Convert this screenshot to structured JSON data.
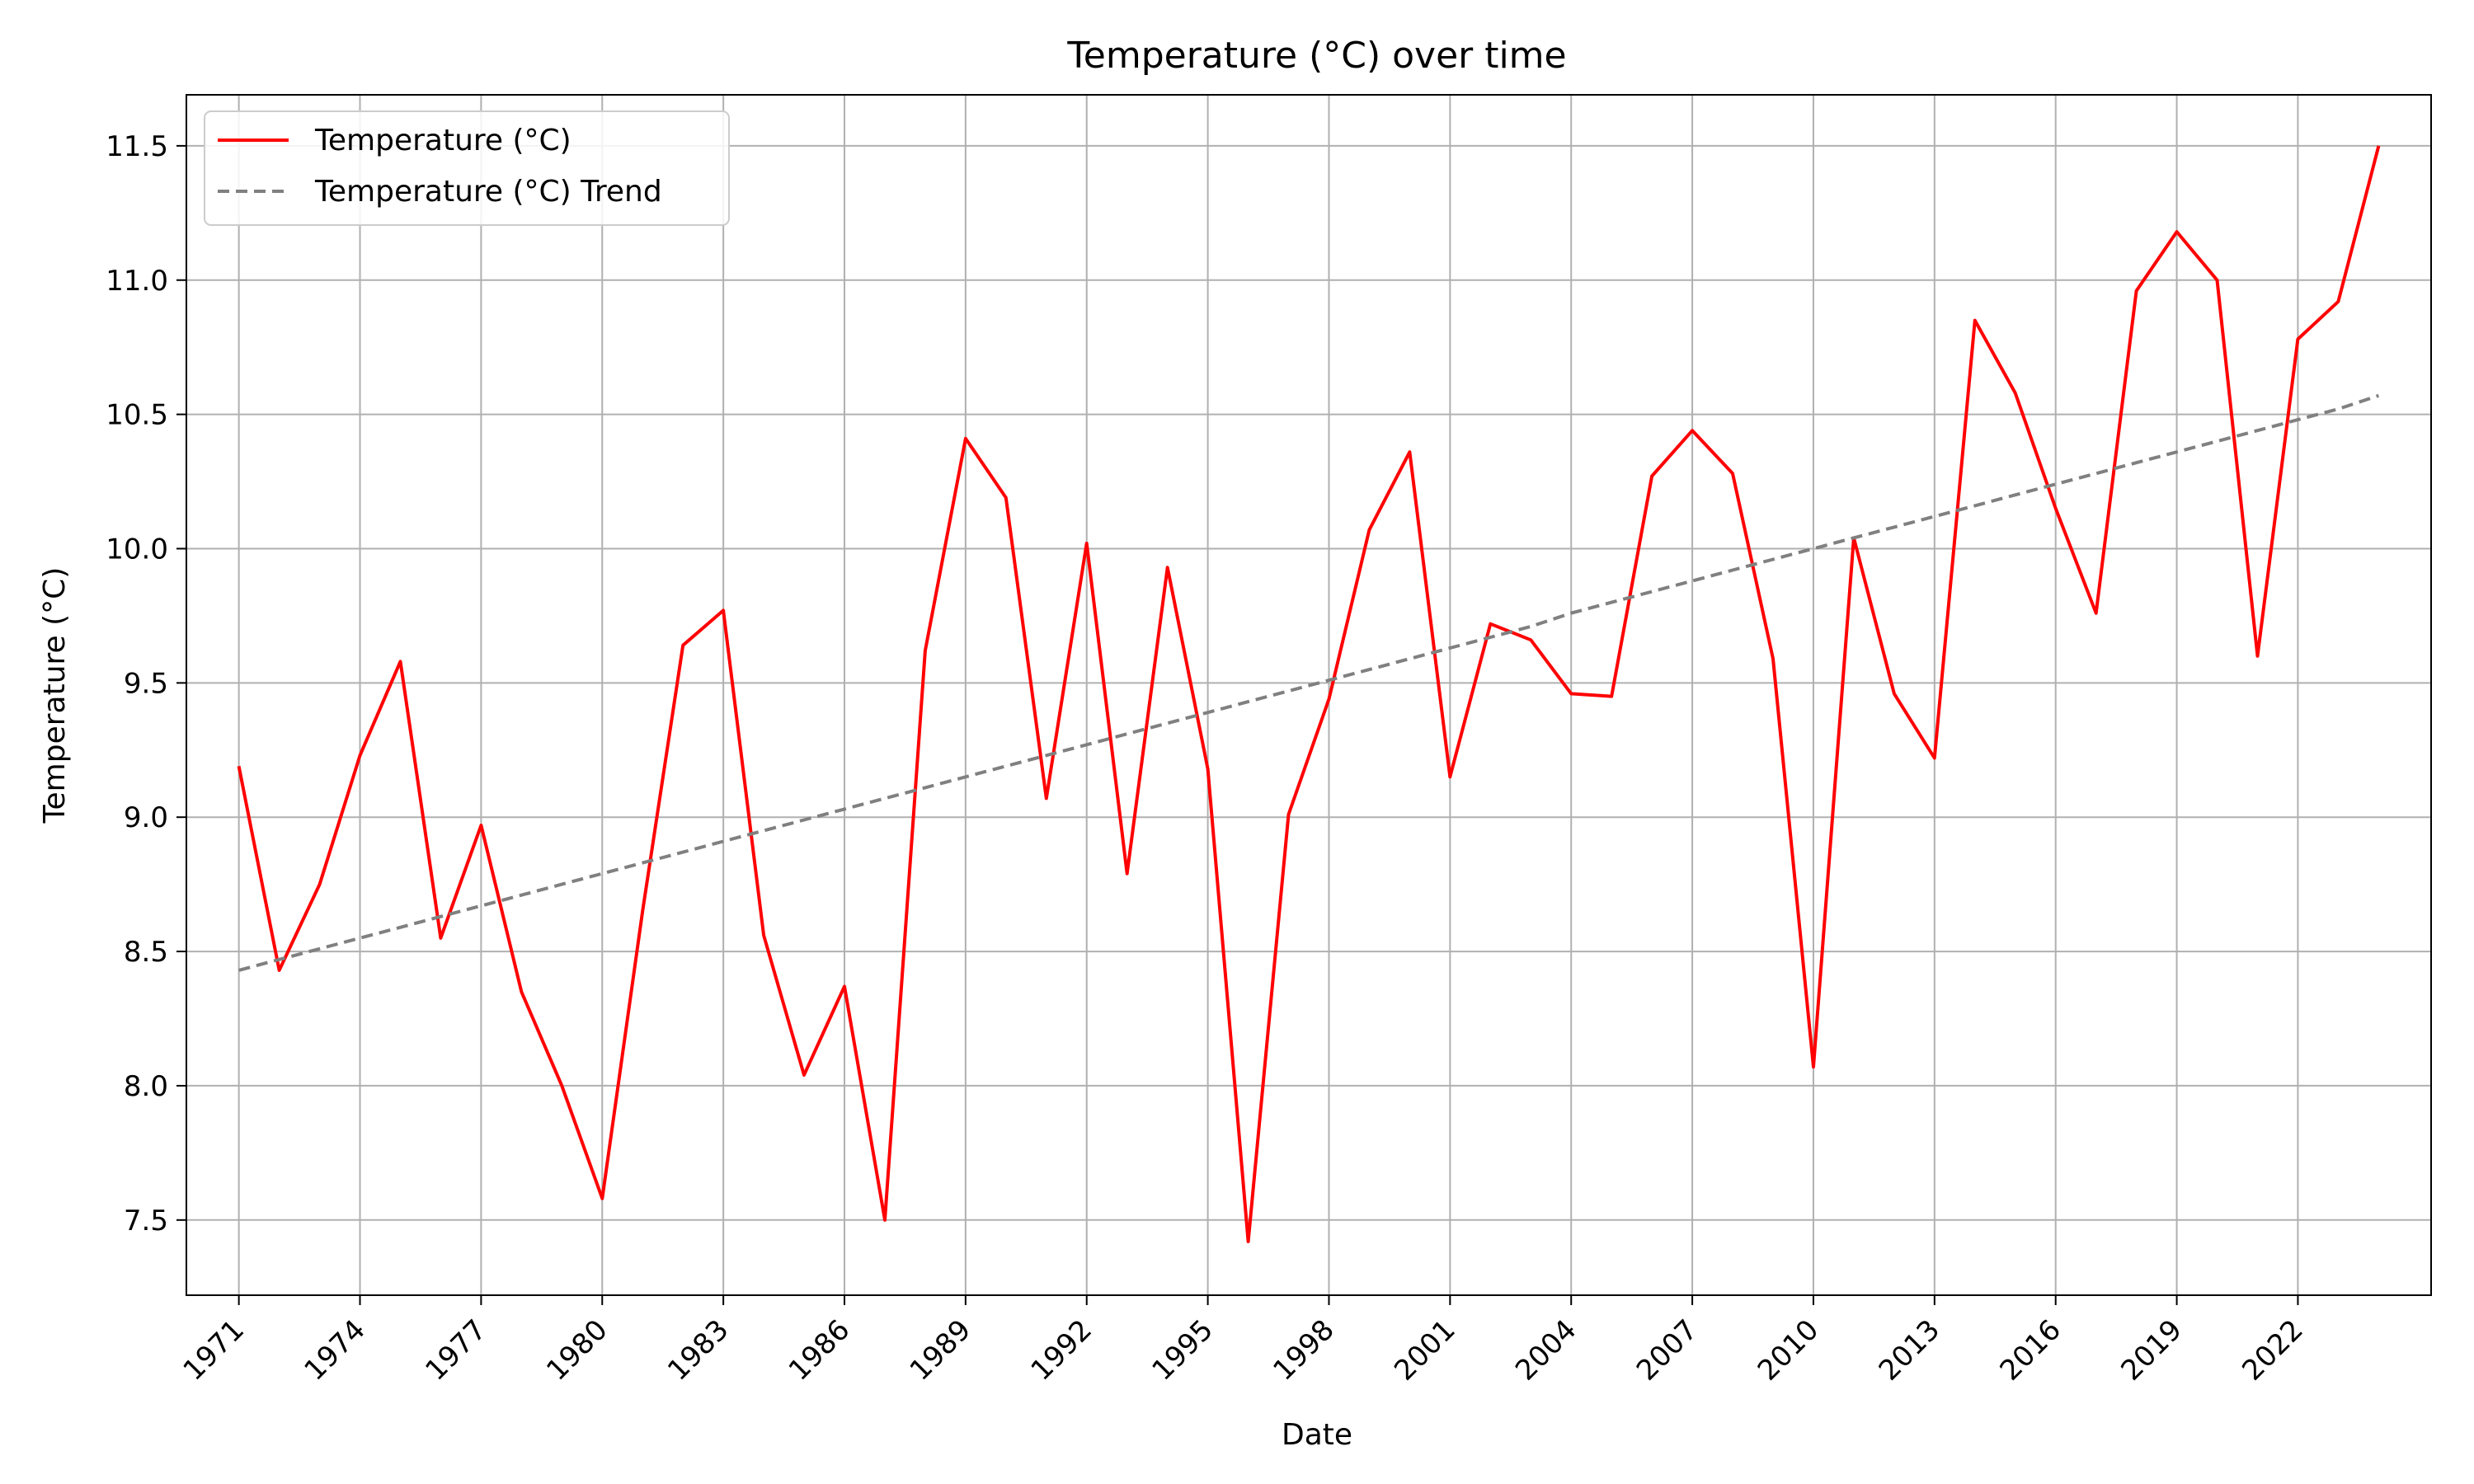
{
  "chart_data": {
    "type": "line",
    "title": "Temperature (°C) over time",
    "xlabel": "Date",
    "ylabel": "Temperature (°C)",
    "x": [
      1971,
      1972,
      1973,
      1974,
      1975,
      1976,
      1977,
      1978,
      1979,
      1980,
      1981,
      1982,
      1983,
      1984,
      1985,
      1986,
      1987,
      1988,
      1989,
      1990,
      1991,
      1992,
      1993,
      1994,
      1995,
      1996,
      1997,
      1998,
      1999,
      2000,
      2001,
      2002,
      2003,
      2004,
      2005,
      2006,
      2007,
      2008,
      2009,
      2010,
      2011,
      2012,
      2013,
      2014,
      2015,
      2016,
      2017,
      2018,
      2019,
      2020,
      2021,
      2022,
      2023,
      2024
    ],
    "x_ticks": [
      1971,
      1974,
      1977,
      1980,
      1983,
      1986,
      1989,
      1992,
      1995,
      1998,
      2001,
      2004,
      2007,
      2010,
      2013,
      2016,
      2019,
      2022
    ],
    "xlim": [
      1969.7,
      2025.3
    ],
    "ylim": [
      7.22,
      11.69
    ],
    "y_ticks": [
      7.5,
      8.0,
      8.5,
      9.0,
      9.5,
      10.0,
      10.5,
      11.0,
      11.5
    ],
    "grid": true,
    "legend_position": "top-left",
    "series": [
      {
        "name": "Temperature (°C)",
        "color": "#ff0000",
        "style": "solid",
        "values": [
          9.19,
          8.43,
          8.75,
          9.23,
          9.58,
          8.55,
          8.97,
          8.35,
          8.0,
          7.58,
          8.65,
          9.64,
          9.77,
          8.56,
          8.04,
          8.37,
          7.5,
          9.62,
          10.41,
          10.19,
          9.07,
          10.02,
          8.79,
          9.93,
          9.18,
          7.42,
          9.01,
          9.44,
          10.07,
          10.36,
          9.15,
          9.72,
          9.66,
          9.46,
          9.45,
          10.27,
          10.44,
          10.28,
          9.59,
          8.07,
          10.04,
          9.46,
          9.22,
          10.85,
          10.58,
          10.15,
          9.76,
          10.96,
          11.18,
          11.0,
          9.6,
          10.78,
          10.92,
          11.5
        ]
      },
      {
        "name": "Temperature (°C) Trend",
        "color": "#808080",
        "style": "dashed",
        "values": [
          8.43,
          8.47,
          8.51,
          8.55,
          8.59,
          8.63,
          8.67,
          8.71,
          8.75,
          8.79,
          8.83,
          8.87,
          8.91,
          8.95,
          8.99,
          9.03,
          9.07,
          9.11,
          9.15,
          9.19,
          9.23,
          9.27,
          9.31,
          9.35,
          9.39,
          9.43,
          9.47,
          9.51,
          9.55,
          9.59,
          9.63,
          9.67,
          9.71,
          9.76,
          9.8,
          9.84,
          9.88,
          9.92,
          9.96,
          10.0,
          10.04,
          10.08,
          10.12,
          10.16,
          10.2,
          10.24,
          10.28,
          10.32,
          10.36,
          10.4,
          10.44,
          10.48,
          10.52,
          10.57
        ]
      }
    ]
  }
}
